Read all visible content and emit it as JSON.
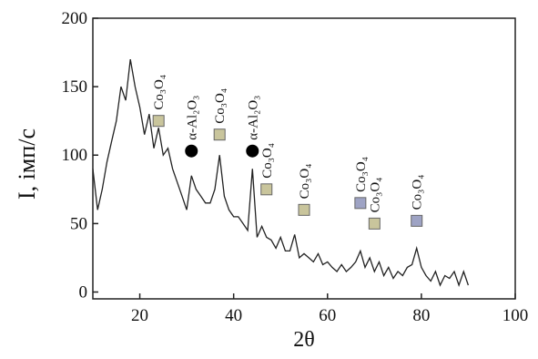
{
  "chart_data": {
    "type": "line",
    "x_label": "2θ",
    "y_label": "I, імп/с",
    "xlim": [
      10,
      100
    ],
    "ylim": [
      -5,
      200
    ],
    "xticks": [
      20,
      40,
      60,
      80,
      100
    ],
    "yticks": [
      0,
      50,
      100,
      150,
      200
    ],
    "x": [
      10,
      11,
      12,
      13,
      14,
      15,
      16,
      17,
      18,
      19,
      20,
      21,
      22,
      23,
      24,
      25,
      26,
      27,
      28,
      29,
      30,
      31,
      32,
      33,
      34,
      35,
      36,
      37,
      38,
      39,
      40,
      41,
      42,
      43,
      44,
      45,
      46,
      47,
      48,
      49,
      50,
      51,
      52,
      53,
      54,
      55,
      56,
      57,
      58,
      59,
      60,
      61,
      62,
      63,
      64,
      65,
      66,
      67,
      68,
      69,
      70,
      71,
      72,
      73,
      74,
      75,
      76,
      77,
      78,
      79,
      80,
      81,
      82,
      83,
      84,
      85,
      86,
      87,
      88,
      89,
      90
    ],
    "series": [
      {
        "color": "#222222",
        "values": [
          90,
          60,
          75,
          95,
          110,
          125,
          150,
          140,
          170,
          150,
          135,
          115,
          130,
          105,
          120,
          100,
          105,
          90,
          80,
          70,
          60,
          85,
          75,
          70,
          65,
          65,
          75,
          100,
          70,
          60,
          55,
          55,
          50,
          45,
          90,
          40,
          48,
          40,
          38,
          32,
          40,
          30,
          30,
          42,
          25,
          28,
          25,
          22,
          28,
          20,
          22,
          18,
          15,
          20,
          15,
          18,
          22,
          30,
          18,
          25,
          15,
          22,
          12,
          18,
          10,
          15,
          12,
          18,
          20,
          32,
          18,
          12,
          8,
          15,
          5,
          12,
          10,
          15,
          5,
          15,
          5
        ]
      }
    ],
    "annotations": [
      {
        "x": 24,
        "y": 125,
        "label": "Co₃O₄",
        "marker": "square",
        "color": "#c9c59c"
      },
      {
        "x": 31,
        "y": 103,
        "label": "α-Al₂O₃",
        "marker": "circle",
        "color": "#000000"
      },
      {
        "x": 37,
        "y": 115,
        "label": "Co₃O₄",
        "marker": "square",
        "color": "#c9c59c"
      },
      {
        "x": 44,
        "y": 103,
        "label": "α-Al₂O₃",
        "marker": "circle",
        "color": "#000000"
      },
      {
        "x": 47,
        "y": 75,
        "label": "Co₃O₄",
        "marker": "square",
        "color": "#c9c59c"
      },
      {
        "x": 55,
        "y": 60,
        "label": "Co₃O₄",
        "marker": "square",
        "color": "#c9c59c"
      },
      {
        "x": 67,
        "y": 65,
        "label": "Co₃O₄",
        "marker": "square",
        "color": "#9ea3c4"
      },
      {
        "x": 70,
        "y": 50,
        "label": "Co₃O₄",
        "marker": "square",
        "color": "#c9c59c"
      },
      {
        "x": 79,
        "y": 52,
        "label": "Co₃O₄",
        "marker": "square",
        "color": "#9ea3c4"
      }
    ]
  }
}
